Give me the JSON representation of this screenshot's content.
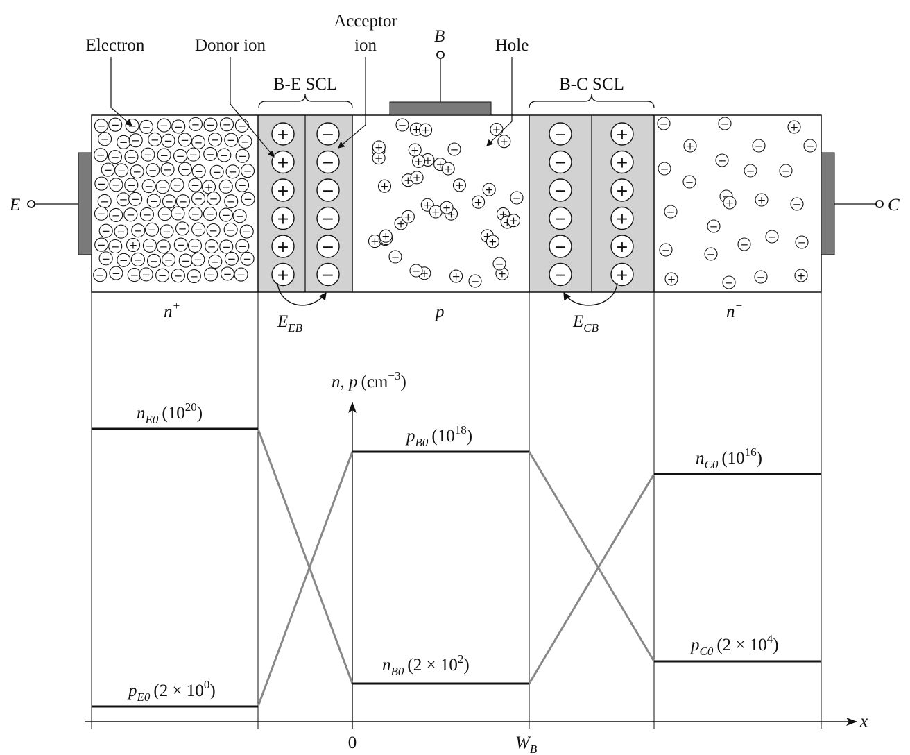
{
  "top_labels": {
    "electron": "Electron",
    "donor_ion": "Donor ion",
    "acceptor_ion_line1": "Acceptor",
    "acceptor_ion_line2": "ion",
    "base_terminal": "B",
    "hole": "Hole",
    "be_scl": "B-E SCL",
    "bc_scl": "B-C SCL"
  },
  "terminals": {
    "emitter": "E",
    "collector": "C"
  },
  "regions": {
    "emitter": "n",
    "emitter_sup": "+",
    "base": "p",
    "collector": "n",
    "collector_sup": "−"
  },
  "fields": {
    "eb": "E",
    "eb_sub": "EB",
    "cb": "E",
    "cb_sub": "CB"
  },
  "plot": {
    "y_axis": "n, p",
    "y_unit_open": "(cm",
    "y_unit_exp": "−3",
    "y_unit_close": ")",
    "x_axis": "x",
    "tick_zero": "0",
    "tick_wb": "W",
    "tick_wb_sub": "B"
  },
  "concentrations": {
    "nE0": {
      "sym": "n",
      "sub": "E0",
      "text": "(10",
      "exp": "20",
      "close": ")"
    },
    "pE0": {
      "sym": "p",
      "sub": "E0",
      "text": "(2 × 10",
      "exp": "0",
      "close": ")"
    },
    "pB0": {
      "sym": "p",
      "sub": "B0",
      "text": "(10",
      "exp": "18",
      "close": ")"
    },
    "nB0": {
      "sym": "n",
      "sub": "B0",
      "text": "(2 × 10",
      "exp": "2",
      "close": ")"
    },
    "nC0": {
      "sym": "n",
      "sub": "C0",
      "text": "(10",
      "exp": "16",
      "close": ")"
    },
    "pC0": {
      "sym": "p",
      "sub": "C0",
      "text": "(2 × 10",
      "exp": "4",
      "close": ")"
    }
  },
  "charge_symbols": {
    "plus": "+",
    "minus": "−"
  },
  "colors": {
    "device_gray": "#7a7a7a",
    "depletion_fill": "#d2d2d2",
    "gray_line": "#888888"
  }
}
